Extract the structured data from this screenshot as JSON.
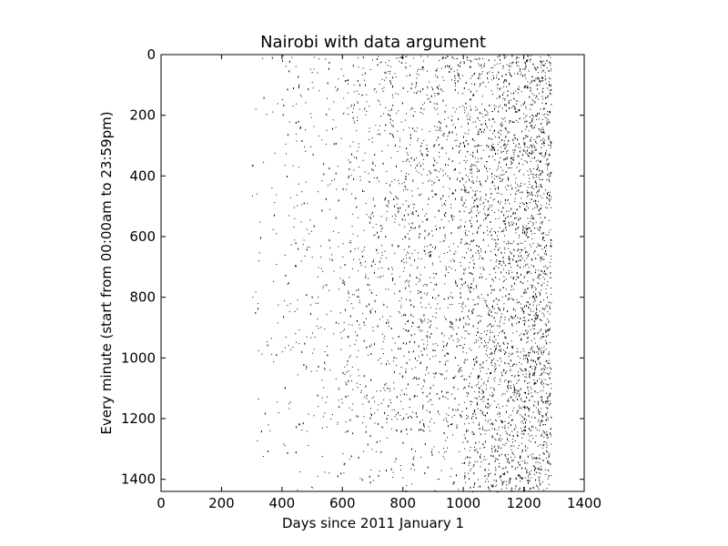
{
  "chart_data": {
    "type": "scatter",
    "title": "Nairobi with data argument",
    "xlabel": "Days since 2011 January 1",
    "ylabel": "Every minute (start from 00:00am to 23:59pm)",
    "xlim": [
      0,
      1400
    ],
    "ylim": [
      1440,
      0
    ],
    "y_inverted": true,
    "x_ticks": [
      0,
      200,
      400,
      600,
      800,
      1000,
      1200,
      1400
    ],
    "y_ticks": [
      0,
      200,
      400,
      600,
      800,
      1000,
      1200,
      1400
    ],
    "grid": false,
    "marker_color": "#000000",
    "background_color": "#ffffff",
    "density_profile": [
      {
        "day_range": [
          0,
          300
        ],
        "relative_density": 0.0
      },
      {
        "day_range": [
          300,
          400
        ],
        "relative_density": 0.04
      },
      {
        "day_range": [
          400,
          600
        ],
        "relative_density": 0.1
      },
      {
        "day_range": [
          600,
          800
        ],
        "relative_density": 0.22
      },
      {
        "day_range": [
          800,
          1000
        ],
        "relative_density": 0.32
      },
      {
        "day_range": [
          1000,
          1100
        ],
        "relative_density": 0.5
      },
      {
        "day_range": [
          1100,
          1200
        ],
        "relative_density": 0.62
      },
      {
        "day_range": [
          1200,
          1290
        ],
        "relative_density": 0.85
      }
    ],
    "data_day_range": [
      300,
      1290
    ],
    "data_minute_range": [
      0,
      1440
    ]
  }
}
